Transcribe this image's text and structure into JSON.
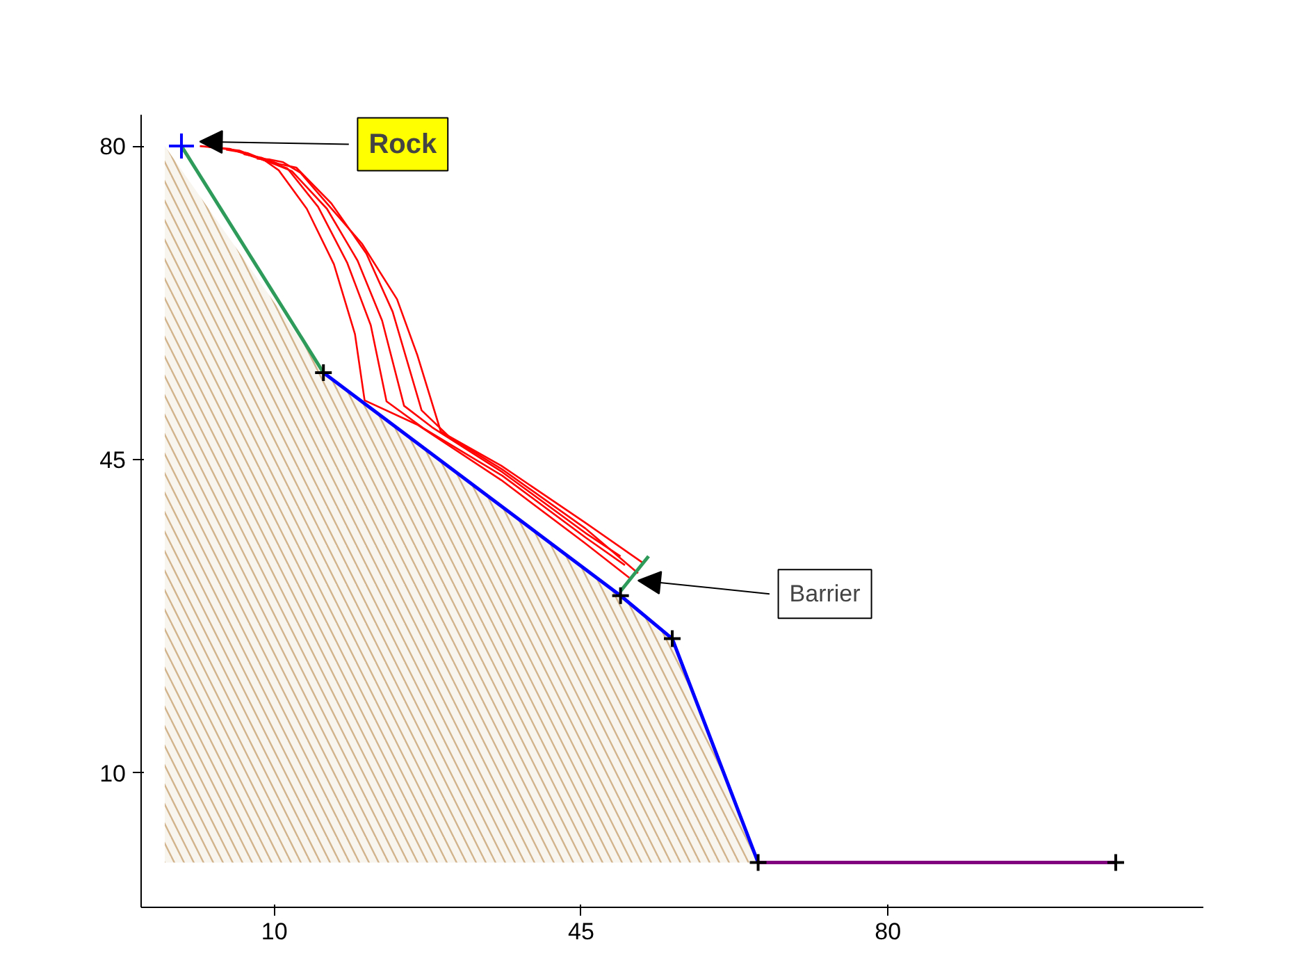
{
  "chart_data": {
    "type": "line",
    "xlim": [
      -5.2,
      116
    ],
    "ylim": [
      -5,
      83.5
    ],
    "xticks": [
      10,
      45,
      80
    ],
    "yticks": [
      10,
      45,
      80
    ],
    "grid": false,
    "line_style": "solid",
    "series": [
      {
        "type": "area",
        "color": "#d2b48c",
        "x": [
          -2.5,
          15.6,
          49.5,
          55.4,
          65.2,
          110
        ],
        "values": [
          80,
          54.7,
          29.8,
          25,
          0,
          0
        ]
      },
      {
        "color": "#2e9b5b",
        "x": [
          -0.6,
          15.6
        ],
        "values": [
          80,
          54.7
        ]
      },
      {
        "type": "line",
        "color": "#0000ff",
        "x": [
          15.6,
          49.5,
          55.4,
          65.2
        ],
        "values": [
          54.7,
          29.8,
          25,
          0
        ]
      },
      {
        "type": "line",
        "color": "#800080",
        "x": [
          65.2,
          106
        ],
        "values": [
          0,
          0
        ]
      },
      {
        "type": "line",
        "color": "#ff0000",
        "x": [
          1.5,
          4.9,
          8.9,
          10.5,
          13.7,
          16.8,
          19.2,
          20.3,
          26.3,
          35.9,
          45.4,
          50.5
        ],
        "values": [
          80,
          79.7,
          78.4,
          77.3,
          73,
          66.8,
          59,
          51.6,
          48.9,
          42.7,
          35.7,
          31.8
        ]
      },
      {
        "type": "line",
        "color": "#ff0000",
        "x": [
          2.5,
          6,
          8.9,
          11.5,
          15,
          18.3,
          21,
          22.8,
          27,
          36,
          45.5,
          50
        ],
        "values": [
          79.9,
          79.5,
          78.4,
          77.5,
          73.2,
          67,
          60,
          51.5,
          48.5,
          43.2,
          36.3,
          33.2
        ]
      },
      {
        "type": "line",
        "color": "#ff0000",
        "x": [
          4.5,
          7,
          9.5,
          12,
          16,
          19.5,
          22.3,
          24.8,
          28,
          36,
          45.5,
          49.5
        ],
        "values": [
          79.6,
          79.2,
          78.2,
          77.2,
          73,
          67.2,
          60.5,
          51,
          48.6,
          43.6,
          36.8,
          34.2
        ]
      },
      {
        "type": "line",
        "color": "#ff0000",
        "x": [
          6.5,
          8.5,
          10.5,
          12.5,
          16.5,
          20.5,
          23.5,
          26.8,
          30,
          36,
          45.5,
          51.5
        ],
        "values": [
          79.1,
          78.7,
          78,
          77.6,
          73.6,
          68,
          61.5,
          50.5,
          47.5,
          43.9,
          37.3,
          32.3
        ]
      },
      {
        "type": "line",
        "color": "#ff0000",
        "x": [
          8,
          9.5,
          11,
          13,
          15.2,
          20,
          24,
          26.3,
          29,
          35.9,
          45.4,
          52
        ],
        "values": [
          78.6,
          78.5,
          78.2,
          77,
          74.5,
          69.1,
          62.9,
          56.7,
          48.1,
          44.3,
          38,
          33.5
        ]
      },
      {
        "type": "line",
        "color": "#2e9b5b",
        "x": [
          49.5,
          52.7
        ],
        "values": [
          30.3,
          34.2
        ]
      },
      {
        "type": "scatter",
        "marker": "cross",
        "color": "#000000",
        "x": [
          15.6,
          49.5,
          55.4,
          65.2,
          106
        ],
        "values": [
          54.7,
          29.8,
          25,
          0,
          0
        ]
      },
      {
        "type": "scatter",
        "marker": "cross",
        "color": "#0000ff",
        "x": [
          -0.6
        ],
        "values": [
          80
        ]
      }
    ],
    "annotations": [
      {
        "text": "Rock",
        "x": 1.5,
        "y": 80.5
      },
      {
        "text": "Barrier",
        "x": 51.5,
        "y": 31.5
      }
    ]
  }
}
